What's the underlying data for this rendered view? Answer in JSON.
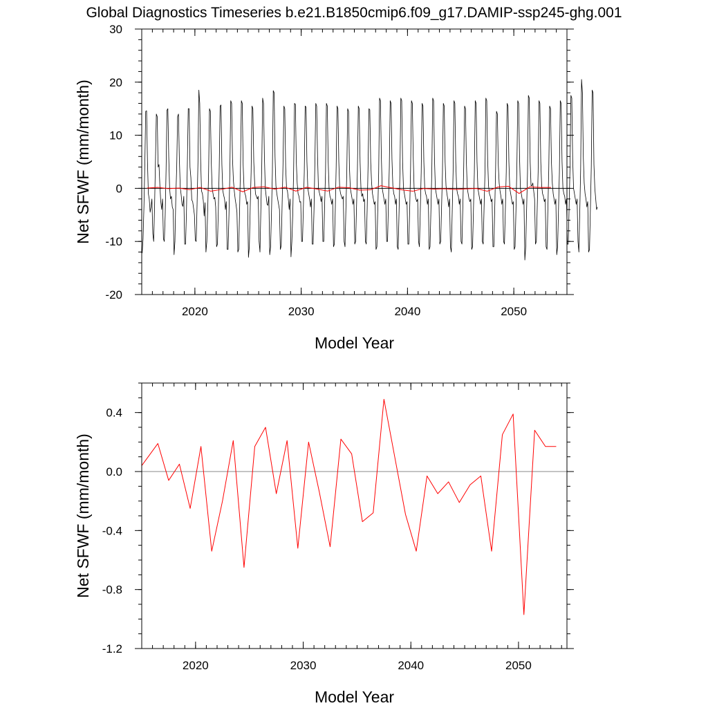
{
  "title": "Global Diagnostics Timeseries b.e21.B1850cmip6.f09_g17.DAMIP-ssp245-ghg.001",
  "chart_data": [
    {
      "type": "line",
      "xlabel": "Model Year",
      "ylabel": "Net SFWF (mm/month)",
      "xlim": [
        2015,
        2055
      ],
      "ylim": [
        -20,
        30
      ],
      "xticks": [
        "2020",
        "2030",
        "2040",
        "2050"
      ],
      "yticks": [
        "-20",
        "-10",
        "0",
        "10",
        "20",
        "30"
      ],
      "zero_line": true,
      "colors": {
        "monthly": "#000000",
        "annual": "#ff0000",
        "zero": "#000000"
      },
      "series": [
        {
          "kind": "monthly",
          "x_start": 2015.04,
          "x_step": 0.08333,
          "values": [
            -12.2,
            -9.5,
            -3.5,
            4.5,
            14.5,
            14.6,
            5.0,
            -1.0,
            -2.0,
            -4.5,
            -3.5,
            -2.0,
            -8.5,
            -10.0,
            -3.5,
            5.0,
            14.0,
            13.5,
            4.0,
            4.5,
            0.5,
            -2.5,
            -4.0,
            -2.0,
            -9.5,
            -10.0,
            -5.0,
            3.5,
            14.7,
            15.0,
            6.0,
            0.0,
            -2.0,
            -1.5,
            -3.5,
            -4.0,
            -12.5,
            -10.0,
            -1.5,
            4.0,
            13.5,
            14.0,
            5.5,
            0.2,
            -1.2,
            -3.0,
            -3.4,
            -1.5,
            -10.5,
            -10.5,
            -4.5,
            4.5,
            15.0,
            15.0,
            4.0,
            2.0,
            -2.2,
            -2.5,
            -3.7,
            -5.0,
            -9.8,
            -10.0,
            -3.0,
            5.0,
            18.5,
            16.0,
            5.5,
            -0.5,
            -1.0,
            -2.3,
            -5.2,
            -2.7,
            -12.0,
            -10.0,
            -4.0,
            3.0,
            15.0,
            14.5,
            5.0,
            0.0,
            -1.0,
            -2.0,
            -1.7,
            -3.5,
            -11.0,
            -10.5,
            -4.0,
            4.0,
            15.5,
            15.7,
            4.5,
            -0.4,
            -1.3,
            -2.0,
            -4.0,
            -2.5,
            -11.5,
            -11.5,
            -5.0,
            3.0,
            16.5,
            16.0,
            5.5,
            1.5,
            -0.5,
            -2.0,
            -3.1,
            -4.5,
            -12.0,
            -11.5,
            -4.0,
            4.0,
            16.5,
            16.0,
            4.5,
            0.0,
            -1.0,
            -1.5,
            -3.0,
            -2.5,
            -13.0,
            -11.0,
            -3.5,
            3.0,
            15.5,
            15.0,
            5.0,
            1.0,
            -1.1,
            -1.5,
            -2.0,
            -1.5,
            -10.0,
            -12.0,
            -4.0,
            4.0,
            17.0,
            16.0,
            6.0,
            0.0,
            -1.5,
            -3.0,
            -3.2,
            -1.5,
            -12.5,
            -11.0,
            -4.5,
            3.0,
            18.4,
            18.0,
            6.0,
            0.5,
            -1.0,
            -2.0,
            -3.0,
            -4.0,
            -11.5,
            -10.8,
            -3.0,
            4.5,
            15.5,
            15.0,
            4.0,
            0.0,
            -0.5,
            -2.0,
            -4.0,
            -2.0,
            -12.9,
            -10.0,
            -5.0,
            3.5,
            16.0,
            15.8,
            5.0,
            1.0,
            -1.0,
            -1.5,
            -2.6,
            -2.5,
            -10.0,
            -10.0,
            -3.5,
            3.0,
            15.5,
            15.3,
            5.0,
            0.0,
            -1.0,
            -2.0,
            -3.5,
            -2.0,
            -10.5,
            -10.5,
            -4.0,
            5.0,
            16.0,
            15.5,
            6.0,
            0.0,
            -0.8,
            -1.5,
            -2.5,
            -1.5,
            -10.0,
            -10.0,
            -3.0,
            3.0,
            16.0,
            15.5,
            5.0,
            0.0,
            -1.5,
            -2.0,
            -3.0,
            -2.0,
            -11.0,
            -10.5,
            -4.0,
            4.0,
            15.5,
            15.0,
            5.0,
            0.0,
            -1.0,
            -1.5,
            -2.0,
            -1.5,
            -10.0,
            -11.0,
            -4.0,
            3.0,
            15.0,
            14.5,
            4.0,
            0.0,
            -1.0,
            -2.0,
            -3.0,
            -2.0,
            -10.5,
            -10.0,
            -3.5,
            3.5,
            15.5,
            15.0,
            5.0,
            0.0,
            -1.5,
            -1.0,
            -2.5,
            -2.0,
            -10.0,
            -10.5,
            -4.0,
            4.0,
            15.0,
            14.8,
            5.0,
            1.0,
            -1.0,
            -2.0,
            -3.0,
            -2.5,
            -11.5,
            -11.0,
            -4.0,
            3.0,
            17.0,
            16.5,
            6.0,
            0.0,
            -1.0,
            -2.0,
            -3.0,
            -2.0,
            -10.0,
            -10.0,
            -3.0,
            4.0,
            16.5,
            16.0,
            5.5,
            0.5,
            -1.0,
            -1.5,
            -3.0,
            -2.0,
            -11.0,
            -11.5,
            -4.5,
            3.0,
            17.0,
            16.5,
            5.0,
            0.0,
            -1.0,
            -2.0,
            -3.0,
            -2.5,
            -10.5,
            -10.5,
            -4.0,
            3.5,
            16.5,
            16.0,
            6.0,
            0.0,
            -1.0,
            -2.0,
            -2.5,
            -2.0,
            -10.0,
            -11.0,
            -4.0,
            3.0,
            16.0,
            15.5,
            5.0,
            0.0,
            -1.0,
            -1.5,
            -3.0,
            -2.0,
            -11.5,
            -11.0,
            -4.0,
            3.5,
            17.0,
            16.5,
            5.5,
            0.0,
            -1.0,
            -2.0,
            -3.0,
            -2.0,
            -10.5,
            -10.0,
            -3.5,
            3.0,
            16.0,
            15.5,
            5.0,
            0.5,
            -1.0,
            -2.0,
            -3.5,
            -2.0,
            -11.0,
            -12.0,
            -4.5,
            3.0,
            16.5,
            16.0,
            5.0,
            0.0,
            -1.0,
            -1.5,
            -3.0,
            -2.0,
            -10.0,
            -10.5,
            -3.5,
            4.0,
            15.5,
            15.0,
            5.0,
            0.0,
            -1.0,
            -2.0,
            -2.5,
            -2.0,
            -11.5,
            -11.0,
            -4.0,
            3.0,
            16.5,
            16.0,
            5.0,
            0.0,
            -1.0,
            -2.0,
            -3.0,
            -2.0,
            -10.0,
            -10.5,
            -3.5,
            3.0,
            17.0,
            16.5,
            5.5,
            0.5,
            -1.0,
            -1.5,
            -2.5,
            -2.0,
            -11.0,
            -11.0,
            -4.0,
            3.5,
            14.5,
            14.0,
            4.5,
            1.0,
            -0.5,
            -1.5,
            -3.0,
            -2.0,
            -10.0,
            -10.5,
            -4.0,
            3.0,
            16.0,
            15.5,
            5.0,
            0.0,
            -1.0,
            -2.0,
            -3.0,
            -2.5,
            -11.5,
            -11.0,
            -4.0,
            4.0,
            16.5,
            16.0,
            6.0,
            0.0,
            -1.0,
            -2.0,
            -3.0,
            -2.0,
            -13.5,
            -11.0,
            -4.0,
            3.0,
            17.5,
            17.0,
            5.0,
            0.5,
            0.5,
            1.0,
            -0.5,
            -2.0,
            -10.5,
            -10.0,
            -3.5,
            3.0,
            16.5,
            16.0,
            5.0,
            0.5,
            -1.0,
            -1.5,
            -2.5,
            -2.0,
            -11.0,
            -11.5,
            -4.0,
            3.5,
            15.5,
            15.0,
            5.0,
            1.0,
            -1.0,
            -2.0,
            -3.0,
            -2.0,
            -12.5,
            -11.0,
            -4.0,
            3.0,
            16.5,
            16.0,
            5.0,
            0.0,
            -1.0,
            -1.5,
            -3.0,
            -2.0,
            -10.5,
            -10.5,
            -3.5,
            4.0,
            17.5,
            17.0,
            5.5,
            0.0,
            -1.0,
            -2.0,
            -3.0,
            -2.0,
            -10.0,
            -12.0,
            -4.5,
            3.5,
            20.5,
            18.0,
            6.0,
            1.0,
            -1.0,
            -2.0,
            -3.5,
            -2.5,
            -12.0,
            -11.5,
            -4.0,
            4.0,
            18.5,
            18.0,
            4.5,
            0.0,
            -2.0,
            -4.0,
            -3.5
          ]
        },
        {
          "kind": "annual",
          "x": [
            2015.5,
            2016.5,
            2017.5,
            2018.5,
            2019.5,
            2020.5,
            2021.5,
            2022.5,
            2023.5,
            2024.5,
            2025.5,
            2026.5,
            2027.5,
            2028.5,
            2029.5,
            2030.5,
            2031.5,
            2032.5,
            2033.5,
            2034.5,
            2035.5,
            2036.5,
            2037.5,
            2038.5,
            2039.5,
            2040.5,
            2041.5,
            2042.5,
            2043.5,
            2044.5,
            2045.5,
            2046.5,
            2047.5,
            2048.5,
            2049.5,
            2050.5,
            2051.5,
            2052.5,
            2053.5
          ],
          "values": [
            0.05,
            0.19,
            -0.06,
            0.05,
            -0.25,
            0.17,
            -0.54,
            -0.2,
            0.21,
            -0.65,
            0.17,
            0.3,
            -0.15,
            0.21,
            -0.52,
            0.2,
            -0.14,
            -0.51,
            0.22,
            0.12,
            -0.34,
            -0.28,
            0.49,
            0.1,
            -0.29,
            -0.54,
            -0.03,
            -0.15,
            -0.07,
            -0.21,
            -0.09,
            -0.03,
            -0.54,
            0.25,
            0.39,
            -0.97,
            0.28,
            0.17,
            0.17
          ]
        }
      ]
    },
    {
      "type": "line",
      "xlabel": "Model Year",
      "ylabel": "Net SFWF (mm/month)",
      "xlim": [
        2015,
        2054.5
      ],
      "ylim": [
        -1.2,
        0.6
      ],
      "xticks": [
        "2020",
        "2030",
        "2040",
        "2050"
      ],
      "yticks": [
        "-1.2",
        "-0.8",
        "-0.4",
        "0.0",
        "0.4"
      ],
      "zero_line": true,
      "colors": {
        "annual": "#ff0000",
        "zero": "#888888"
      },
      "series": [
        {
          "kind": "annual",
          "x": [
            2015.0,
            2016.5,
            2017.5,
            2018.5,
            2019.5,
            2020.5,
            2021.5,
            2022.5,
            2023.5,
            2024.5,
            2025.5,
            2026.5,
            2027.5,
            2028.5,
            2029.5,
            2030.5,
            2031.5,
            2032.5,
            2033.5,
            2034.5,
            2035.5,
            2036.5,
            2037.5,
            2038.5,
            2039.5,
            2040.5,
            2041.5,
            2042.5,
            2043.5,
            2044.5,
            2045.5,
            2046.5,
            2047.5,
            2048.5,
            2049.5,
            2050.5,
            2051.5,
            2052.5,
            2053.5
          ],
          "values": [
            0.04,
            0.19,
            -0.06,
            0.05,
            -0.25,
            0.17,
            -0.54,
            -0.2,
            0.21,
            -0.65,
            0.17,
            0.3,
            -0.15,
            0.21,
            -0.52,
            0.2,
            -0.14,
            -0.51,
            0.22,
            0.12,
            -0.34,
            -0.28,
            0.49,
            0.1,
            -0.29,
            -0.54,
            -0.03,
            -0.15,
            -0.07,
            -0.21,
            -0.09,
            -0.03,
            -0.54,
            0.25,
            0.39,
            -0.97,
            0.28,
            0.17,
            0.17
          ]
        }
      ]
    }
  ]
}
